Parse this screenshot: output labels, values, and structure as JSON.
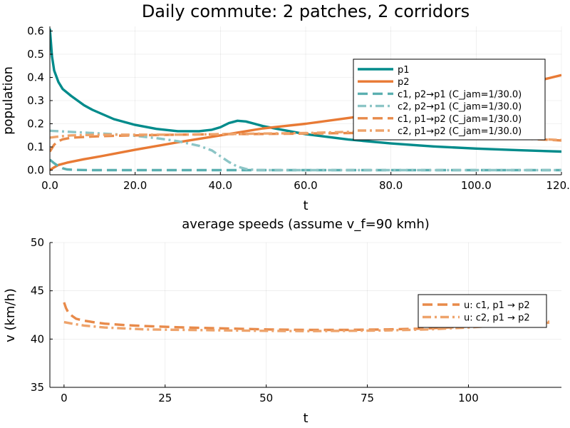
{
  "chart_data": [
    {
      "type": "line",
      "title": "Daily commute: 2 patches, 2 corridors",
      "xlabel": "t",
      "ylabel": "population",
      "xlim": [
        0,
        120
      ],
      "ylim": [
        -0.02,
        0.62
      ],
      "xticks": [
        0,
        20,
        40,
        60,
        80,
        100,
        120
      ],
      "yticks": [
        0.0,
        0.1,
        0.2,
        0.3,
        0.4,
        0.5,
        0.6
      ],
      "grid": true,
      "legend_position": "right",
      "series": [
        {
          "name": "p1",
          "color": "#008b8b",
          "style": "solid",
          "width": 3.4,
          "x": [
            0,
            0.5,
            1,
            2,
            3,
            5,
            8,
            10,
            15,
            20,
            25,
            30,
            35,
            38,
            40,
            42,
            44,
            46,
            48,
            50,
            55,
            60,
            70,
            80,
            90,
            100,
            110,
            120
          ],
          "y": [
            0.61,
            0.49,
            0.43,
            0.38,
            0.35,
            0.32,
            0.28,
            0.26,
            0.22,
            0.195,
            0.178,
            0.168,
            0.168,
            0.174,
            0.185,
            0.203,
            0.213,
            0.21,
            0.2,
            0.19,
            0.172,
            0.155,
            0.132,
            0.115,
            0.102,
            0.093,
            0.086,
            0.08
          ]
        },
        {
          "name": "p2",
          "color": "#e87a35",
          "style": "solid",
          "width": 3.4,
          "x": [
            0,
            1,
            2,
            4,
            8,
            12,
            20,
            30,
            40,
            50,
            60,
            70,
            80,
            90,
            100,
            110,
            120
          ],
          "y": [
            0.0,
            0.012,
            0.022,
            0.032,
            0.047,
            0.06,
            0.088,
            0.12,
            0.15,
            0.18,
            0.2,
            0.225,
            0.25,
            0.28,
            0.32,
            0.365,
            0.41
          ]
        },
        {
          "name": "c1, p2→p1 (C_jam=1/30.0)",
          "color": "#5aafb0",
          "style": "dash",
          "width": 3.4,
          "x": [
            0,
            1,
            2,
            3,
            4,
            6,
            10,
            20,
            120
          ],
          "y": [
            0.045,
            0.03,
            0.017,
            0.008,
            0.003,
            0.001,
            0.0,
            0.0,
            0.0
          ]
        },
        {
          "name": "c2, p2→p1 (C_jam=1/30.0)",
          "color": "#8cc5c6",
          "style": "dashdot",
          "width": 3.4,
          "x": [
            0,
            5,
            10,
            15,
            20,
            25,
            30,
            35,
            38,
            40,
            42,
            44,
            46,
            48,
            50,
            60,
            120
          ],
          "y": [
            0.17,
            0.165,
            0.16,
            0.155,
            0.148,
            0.138,
            0.125,
            0.105,
            0.085,
            0.06,
            0.035,
            0.015,
            0.005,
            0.001,
            0.0,
            0.0,
            0.0
          ]
        },
        {
          "name": "c1, p1→p2 (C_jam=1/30.0)",
          "color": "#e88a4a",
          "style": "dash",
          "width": 3.4,
          "x": [
            0,
            1,
            2,
            3,
            5,
            10,
            15,
            20,
            30,
            40,
            50,
            60,
            70,
            80,
            90,
            100,
            110,
            120
          ],
          "y": [
            0.08,
            0.11,
            0.125,
            0.133,
            0.14,
            0.145,
            0.148,
            0.15,
            0.153,
            0.155,
            0.156,
            0.158,
            0.16,
            0.162,
            0.16,
            0.148,
            0.137,
            0.128
          ]
        },
        {
          "name": "c2, p1→p2 (C_jam=1/30.0)",
          "color": "#eea36b",
          "style": "dashdot",
          "width": 3.4,
          "x": [
            0,
            2,
            5,
            10,
            15,
            20,
            30,
            40,
            50,
            60,
            70,
            80,
            90,
            100,
            110,
            120
          ],
          "y": [
            0.14,
            0.145,
            0.15,
            0.152,
            0.153,
            0.153,
            0.153,
            0.155,
            0.158,
            0.16,
            0.165,
            0.168,
            0.16,
            0.148,
            0.138,
            0.13
          ]
        }
      ]
    },
    {
      "type": "line",
      "title": "average speeds (assume v_f=90 kmh)",
      "xlabel": "t",
      "ylabel": "v (km/h)",
      "xlim": [
        -3.5,
        123
      ],
      "ylim": [
        35,
        50
      ],
      "xticks": [
        0,
        25,
        50,
        75,
        100
      ],
      "yticks": [
        35,
        40,
        45,
        50
      ],
      "grid": true,
      "legend_position": "right",
      "series": [
        {
          "name": "u: c1, p1 → p2",
          "color": "#e88a4a",
          "style": "dash",
          "width": 3.4,
          "x": [
            0,
            0.5,
            1,
            2,
            3,
            5,
            8,
            10,
            15,
            20,
            30,
            40,
            50,
            60,
            70,
            80,
            90,
            100,
            110,
            120
          ],
          "y": [
            43.8,
            43.2,
            42.8,
            42.4,
            42.1,
            41.9,
            41.7,
            41.6,
            41.45,
            41.35,
            41.2,
            41.1,
            41.0,
            40.95,
            40.95,
            41.0,
            41.1,
            41.3,
            41.55,
            41.8
          ]
        },
        {
          "name": "u: c2, p1 → p2",
          "color": "#eea36b",
          "style": "dashdot",
          "width": 3.4,
          "x": [
            0,
            2,
            5,
            10,
            15,
            20,
            30,
            40,
            50,
            60,
            70,
            80,
            90,
            100,
            110,
            120
          ],
          "y": [
            41.75,
            41.6,
            41.4,
            41.2,
            41.1,
            41.0,
            40.95,
            40.9,
            40.85,
            40.82,
            40.85,
            40.9,
            41.0,
            41.2,
            41.45,
            41.7
          ]
        }
      ]
    }
  ]
}
